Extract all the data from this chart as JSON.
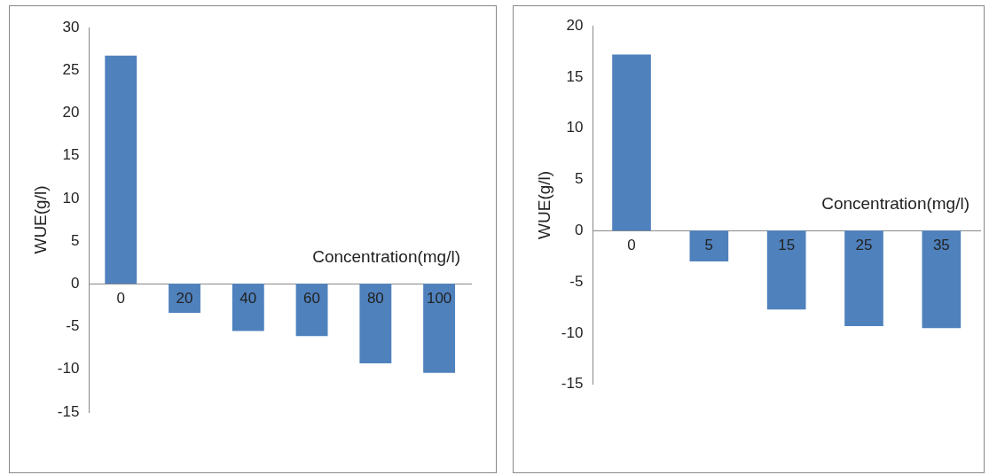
{
  "chart_data": [
    {
      "type": "bar",
      "xlabel": "Concentration(mg/l)",
      "ylabel": "WUE(g/l)",
      "categories": [
        "0",
        "20",
        "40",
        "60",
        "80",
        "100"
      ],
      "values": [
        26.7,
        -3.4,
        -5.5,
        -6.1,
        -9.3,
        -10.4
      ],
      "color": "#4f81bd",
      "ylim": [
        -15,
        30
      ],
      "yticks": [
        -15,
        -10,
        -5,
        0,
        5,
        10,
        15,
        20,
        25,
        30
      ],
      "grid": false,
      "legend": false
    },
    {
      "type": "bar",
      "xlabel": "Concentration(mg/l)",
      "ylabel": "WUE(g/l)",
      "categories": [
        "0",
        "5",
        "15",
        "25",
        "35"
      ],
      "values": [
        17.2,
        -3.0,
        -7.7,
        -9.3,
        -9.5
      ],
      "color": "#4f81bd",
      "ylim": [
        -15,
        20
      ],
      "yticks": [
        -15,
        -10,
        -5,
        0,
        5,
        10,
        15,
        20
      ],
      "grid": false,
      "legend": false
    }
  ]
}
